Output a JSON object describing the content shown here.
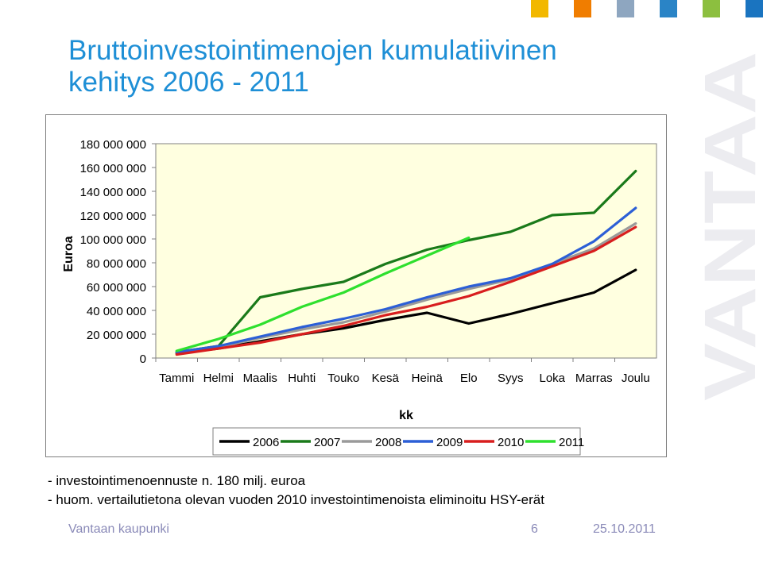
{
  "title": {
    "line1": "Bruttoinvestointimenojen kumulatiivinen",
    "line2": "kehitys 2006 - 2011"
  },
  "brand": {
    "colors": [
      "#f2b800",
      "#f07d00",
      "#8ea6c0",
      "#2a84c6",
      "#8cbf3f",
      "#1a74c0"
    ]
  },
  "watermark": {
    "text": "VANTAA"
  },
  "chart_data": {
    "type": "line",
    "title": "",
    "xlabel": "kk",
    "ylabel": "Euroa",
    "ylim": [
      0,
      180000000
    ],
    "yticks": [
      0,
      20000000,
      40000000,
      60000000,
      80000000,
      100000000,
      120000000,
      140000000,
      160000000,
      180000000
    ],
    "ytick_labels": [
      "0",
      "20 000 000",
      "40 000 000",
      "60 000 000",
      "80 000 000",
      "100 000 000",
      "120 000 000",
      "140 000 000",
      "160 000 000",
      "180 000 000"
    ],
    "categories": [
      "Tammi",
      "Helmi",
      "Maalis",
      "Huhti",
      "Touko",
      "Kesä",
      "Heinä",
      "Elo",
      "Syys",
      "Loka",
      "Marras",
      "Joulu"
    ],
    "legend_position": "bottom",
    "plot_background": "#ffffe0",
    "series": [
      {
        "name": "2006",
        "color": "#000000",
        "values": [
          4000000,
          8000000,
          14000000,
          20000000,
          25000000,
          32000000,
          38000000,
          29000000,
          37000000,
          46000000,
          55000000,
          74000000
        ]
      },
      {
        "name": "2007",
        "color": "#1a7a1a",
        "values": [
          5000000,
          10000000,
          51000000,
          58000000,
          64000000,
          79000000,
          91000000,
          99000000,
          106000000,
          120000000,
          122000000,
          157000000
        ]
      },
      {
        "name": "2008",
        "color": "#9a9a9a",
        "values": [
          5000000,
          9000000,
          17000000,
          24000000,
          30000000,
          39000000,
          49000000,
          58000000,
          66000000,
          79000000,
          92000000,
          113000000
        ]
      },
      {
        "name": "2009",
        "color": "#2c5fd6",
        "values": [
          5000000,
          10000000,
          18000000,
          26000000,
          33000000,
          41000000,
          51000000,
          60000000,
          67000000,
          79000000,
          98000000,
          126000000
        ]
      },
      {
        "name": "2010",
        "color": "#d81e1e",
        "values": [
          3000000,
          8000000,
          13000000,
          20000000,
          27000000,
          36000000,
          43000000,
          52000000,
          64000000,
          77000000,
          90000000,
          110000000
        ]
      },
      {
        "name": "2011",
        "color": "#2ee02e",
        "values": [
          6000000,
          16000000,
          28000000,
          43000000,
          55000000,
          71000000,
          86000000,
          101000000,
          null,
          null,
          null,
          null
        ]
      }
    ]
  },
  "notes": [
    "- investointimenoennuste n. 180 milj. euroa",
    "- huom. vertailutietona olevan vuoden 2010 investointimenoista eliminoitu HSY-erät"
  ],
  "footer": {
    "org": "Vantaan kaupunki",
    "page": "6",
    "date": "25.10.2011"
  }
}
